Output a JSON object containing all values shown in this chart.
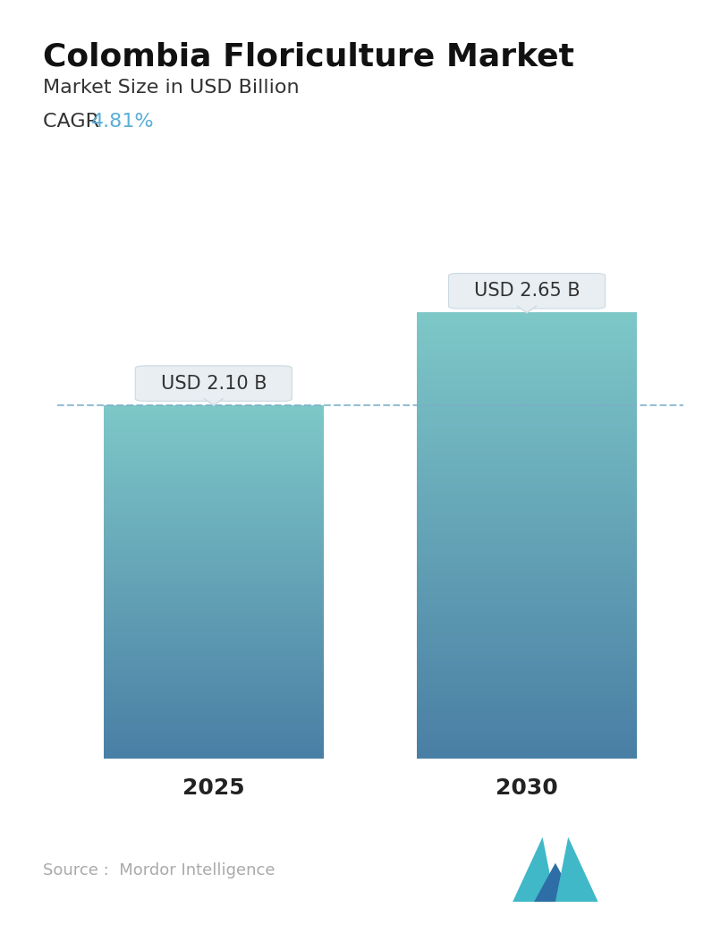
{
  "title": "Colombia Floriculture Market",
  "subtitle": "Market Size in USD Billion",
  "cagr_label": "CAGR ",
  "cagr_value": "4.81%",
  "cagr_color": "#5BAFD6",
  "categories": [
    "2025",
    "2030"
  ],
  "values": [
    2.1,
    2.65
  ],
  "bar_labels": [
    "USD 2.10 B",
    "USD 2.65 B"
  ],
  "bar_color_top": "#4A7FA5",
  "bar_color_bottom": "#7EC8C8",
  "dashed_line_color": "#7BAFC8",
  "dashed_line_value": 2.1,
  "source_text": "Source :  Mordor Intelligence",
  "source_color": "#aaaaaa",
  "bg_color": "#ffffff",
  "title_fontsize": 26,
  "subtitle_fontsize": 16,
  "cagr_fontsize": 16,
  "xlabel_fontsize": 18,
  "label_fontsize": 15,
  "ylim": [
    0,
    3.3
  ]
}
